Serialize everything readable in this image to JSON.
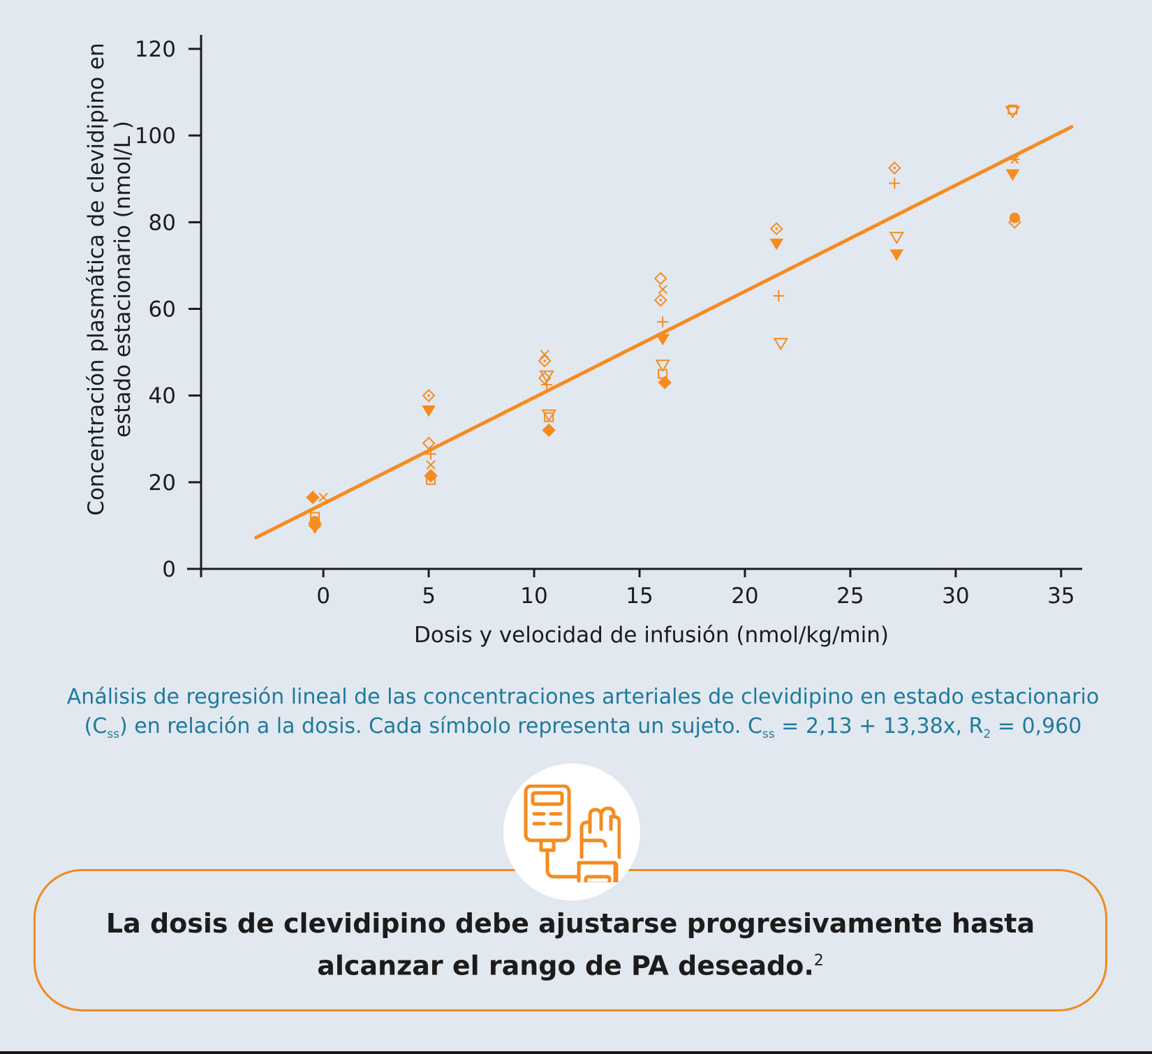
{
  "chart_data": {
    "type": "scatter",
    "title": "",
    "xlabel": "Dosis y velocidad de infusión (nmol/kg/min)",
    "ylabel_line1": "Concentración plasmática de clevidipino en",
    "ylabel_line2": "estado estacionario (nmol/L )",
    "xlim": [
      -5.8,
      36
    ],
    "ylim": [
      0,
      120
    ],
    "x_ticks": [
      0,
      5,
      10,
      15,
      20,
      25,
      30,
      35
    ],
    "y_ticks": [
      0,
      20,
      40,
      60,
      80,
      100,
      120
    ],
    "grid": false,
    "legend": "none",
    "series_color": "#f68b1f",
    "fit_line": {
      "x": [
        -3.2,
        35.5
      ],
      "y": [
        7.2,
        102
      ]
    },
    "points": [
      {
        "x": -0.5,
        "y": 16.5,
        "marker": "diamond-filled"
      },
      {
        "x": 0,
        "y": 16.5,
        "marker": "x"
      },
      {
        "x": -0.4,
        "y": 12,
        "marker": "square-open"
      },
      {
        "x": -0.4,
        "y": 11,
        "marker": "circle-filled"
      },
      {
        "x": -0.4,
        "y": 10,
        "marker": "diamond-filled"
      },
      {
        "x": -0.4,
        "y": 9.5,
        "marker": "triangle-filled"
      },
      {
        "x": 5,
        "y": 40,
        "marker": "diamond-dot"
      },
      {
        "x": 5,
        "y": 36.5,
        "marker": "triangle-filled"
      },
      {
        "x": 5,
        "y": 29,
        "marker": "diamond-open"
      },
      {
        "x": 5.1,
        "y": 26.5,
        "marker": "plus"
      },
      {
        "x": 5.1,
        "y": 24,
        "marker": "x"
      },
      {
        "x": 5.1,
        "y": 21.5,
        "marker": "diamond-filled"
      },
      {
        "x": 5.1,
        "y": 20.5,
        "marker": "square-open"
      },
      {
        "x": 10.5,
        "y": 49.5,
        "marker": "x"
      },
      {
        "x": 10.5,
        "y": 48,
        "marker": "diamond-dot"
      },
      {
        "x": 10.6,
        "y": 44.5,
        "marker": "triangle-open"
      },
      {
        "x": 10.5,
        "y": 44,
        "marker": "diamond-open"
      },
      {
        "x": 10.6,
        "y": 42.5,
        "marker": "plus"
      },
      {
        "x": 10.7,
        "y": 35.5,
        "marker": "triangle-open"
      },
      {
        "x": 10.7,
        "y": 35,
        "marker": "square-open"
      },
      {
        "x": 10.7,
        "y": 32,
        "marker": "diamond-filled"
      },
      {
        "x": 16,
        "y": 67,
        "marker": "diamond-open"
      },
      {
        "x": 16.1,
        "y": 64.5,
        "marker": "x"
      },
      {
        "x": 16,
        "y": 62,
        "marker": "diamond-dot"
      },
      {
        "x": 16.1,
        "y": 57,
        "marker": "plus"
      },
      {
        "x": 16.1,
        "y": 53,
        "marker": "triangle-filled"
      },
      {
        "x": 16.1,
        "y": 47,
        "marker": "triangle-open"
      },
      {
        "x": 16.1,
        "y": 45,
        "marker": "square-open"
      },
      {
        "x": 16.2,
        "y": 43,
        "marker": "diamond-filled"
      },
      {
        "x": 21.5,
        "y": 78.5,
        "marker": "diamond-dot"
      },
      {
        "x": 21.5,
        "y": 75,
        "marker": "triangle-filled"
      },
      {
        "x": 21.6,
        "y": 63,
        "marker": "plus"
      },
      {
        "x": 21.7,
        "y": 52,
        "marker": "triangle-open"
      },
      {
        "x": 27.1,
        "y": 92.5,
        "marker": "diamond-dot"
      },
      {
        "x": 27.1,
        "y": 89,
        "marker": "plus"
      },
      {
        "x": 27.2,
        "y": 76.5,
        "marker": "triangle-open"
      },
      {
        "x": 27.2,
        "y": 72.5,
        "marker": "triangle-filled"
      },
      {
        "x": 32.7,
        "y": 106,
        "marker": "square-open"
      },
      {
        "x": 32.7,
        "y": 105.5,
        "marker": "triangle-open"
      },
      {
        "x": 32.8,
        "y": 94.5,
        "marker": "asterisk"
      },
      {
        "x": 32.7,
        "y": 91,
        "marker": "triangle-filled"
      },
      {
        "x": 32.8,
        "y": 81,
        "marker": "circle-filled"
      },
      {
        "x": 32.8,
        "y": 80,
        "marker": "diamond-open"
      }
    ]
  },
  "caption": {
    "line1": "Análisis de regresión lineal de las concentraciones arteriales de clevidipino en estado estacionario",
    "line2_a": "(C",
    "line2_sub1": "ss",
    "line2_b": ") en relación a la dosis. Cada símbolo representa un sujeto. C",
    "line2_sub2": "ss",
    "line2_c": " = 2,13 + 13,38x, R",
    "line2_sub3": "2",
    "line2_d": " = 0,960"
  },
  "callout": {
    "line1": "La dosis de clevidipino debe ajustarse progresivamente hasta",
    "line2": "alcanzar el rango de PA deseado.",
    "sup": "2"
  },
  "icon": {
    "name": "blood-pressure-monitor-icon",
    "color": "#f68b1f"
  }
}
